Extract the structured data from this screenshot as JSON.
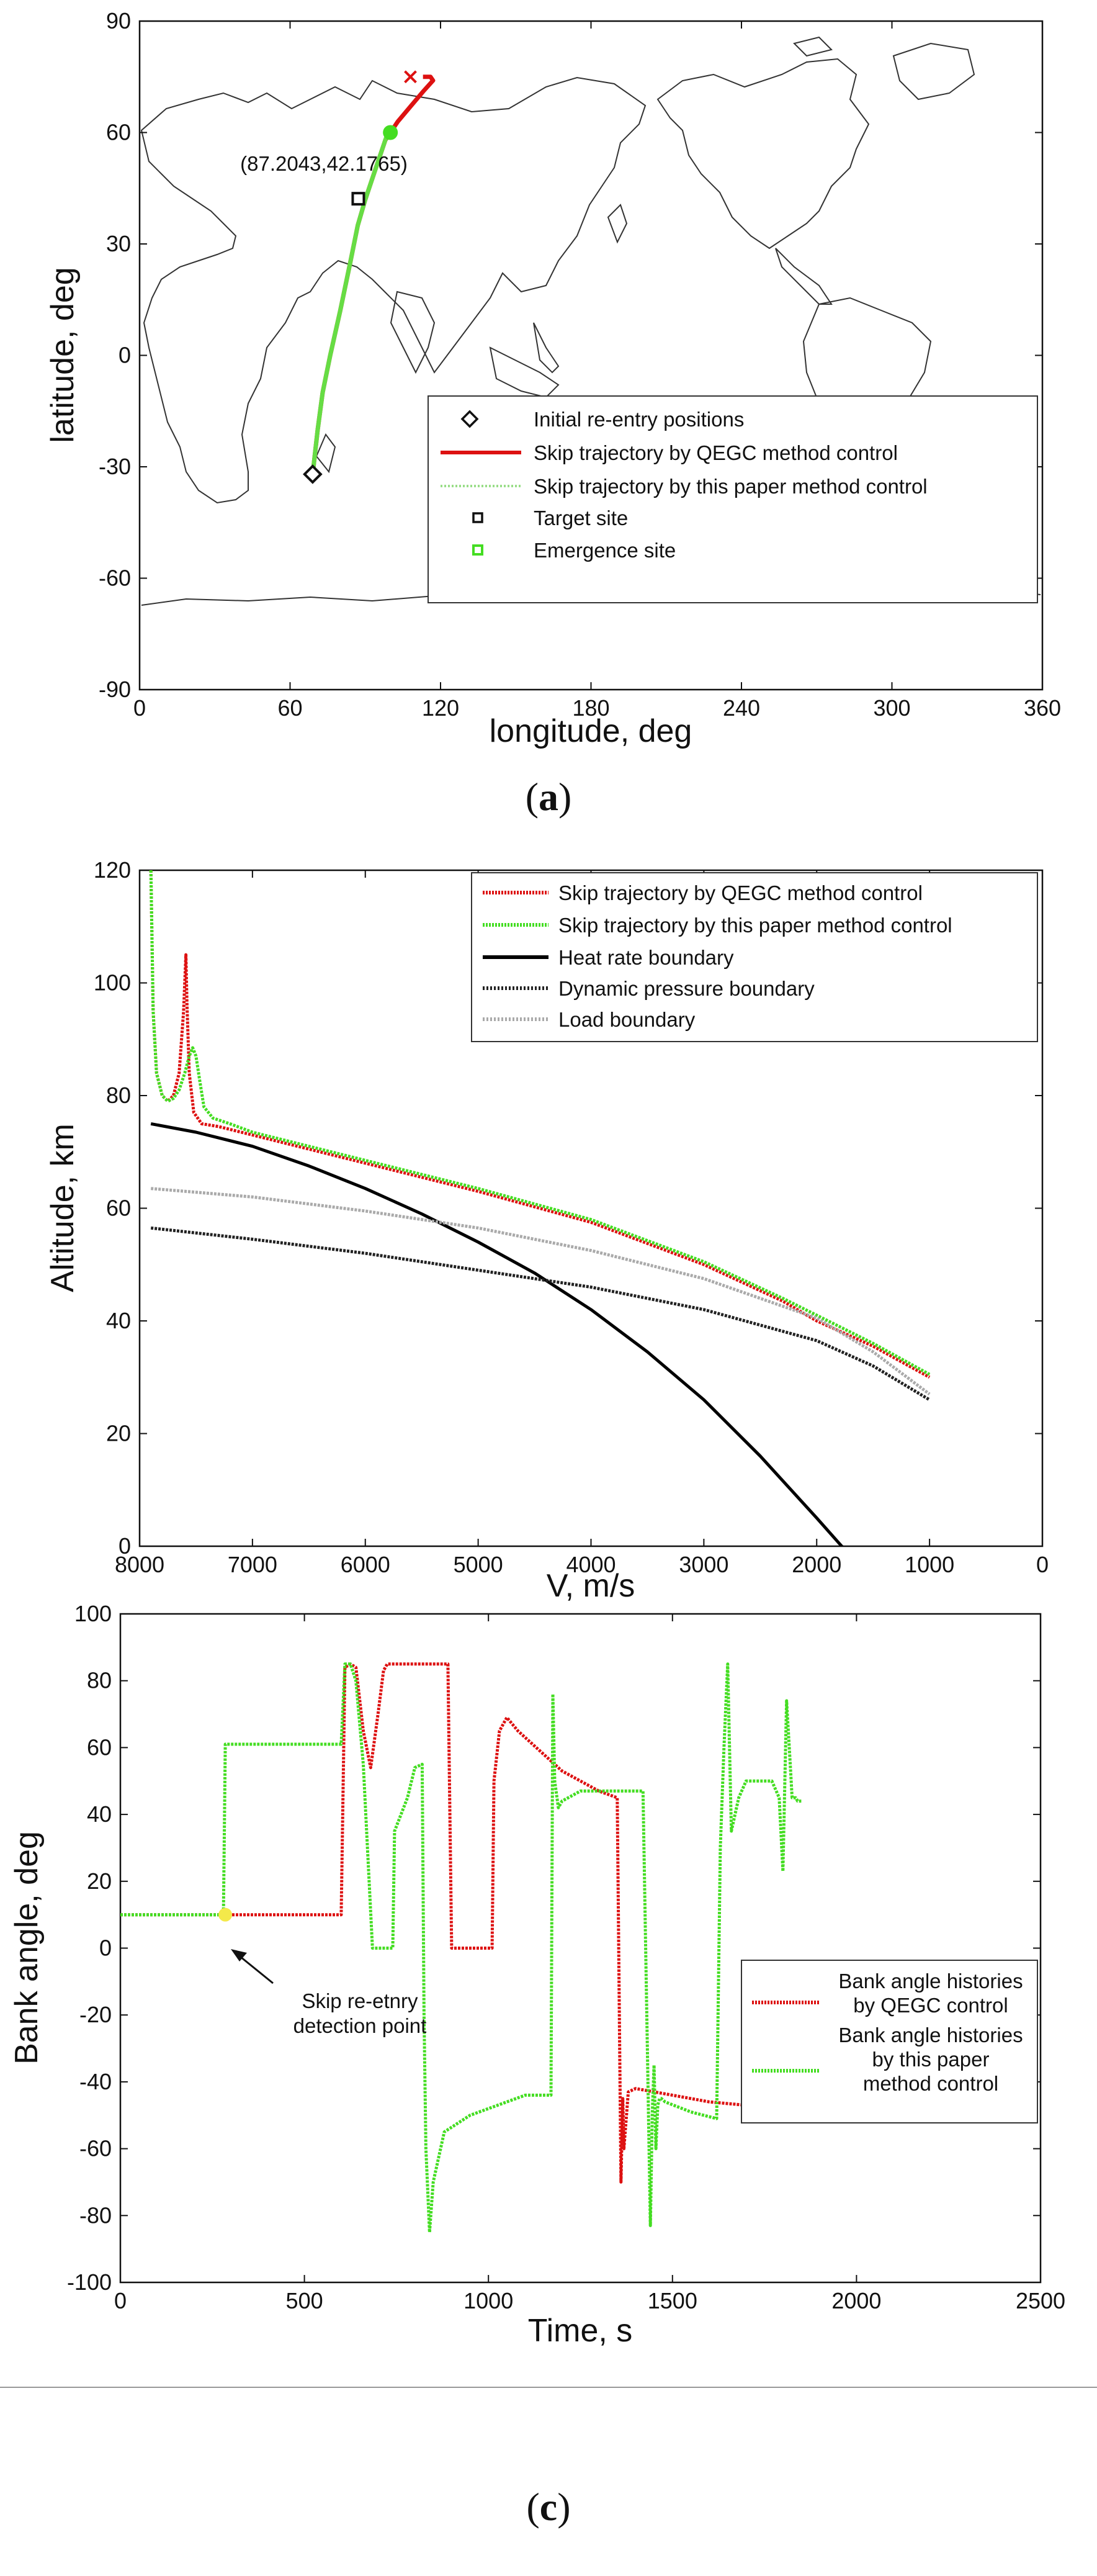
{
  "chart_data": [
    {
      "id": "a",
      "type": "line",
      "subfigure_label": "a",
      "xlabel": "longitude, deg",
      "ylabel": "latitude, deg",
      "xlim": [
        0,
        360
      ],
      "ylim": [
        -90,
        90
      ],
      "xticks": [
        0,
        60,
        120,
        180,
        240,
        300,
        360
      ],
      "yticks": [
        -90,
        -60,
        -30,
        0,
        30,
        60,
        90
      ],
      "annotation": "(87.2043,42.1765)",
      "legend": [
        "Initial re-entry positions",
        "Skip trajectory by QEGC method control",
        "Skip trajectory by this paper method control",
        "Target site",
        "Emergence site"
      ],
      "series": [
        {
          "name": "Skip trajectory by QEGC method control",
          "color": "#dd1111",
          "x": [
            69,
            71,
            73,
            76,
            80,
            84,
            87,
            90,
            94,
            98,
            103,
            108,
            113,
            117,
            116,
            113
          ],
          "y": [
            -32,
            -20,
            -10,
            0,
            12,
            25,
            35,
            42,
            50,
            58,
            63,
            67,
            71,
            74,
            75,
            75
          ]
        },
        {
          "name": "Skip trajectory by this paper method control",
          "color": "#66dd44",
          "x": [
            69,
            71,
            73,
            76,
            80,
            84,
            87,
            90,
            94,
            99
          ],
          "y": [
            -32,
            -20,
            -10,
            0,
            12,
            25,
            35,
            42,
            50,
            60
          ]
        }
      ],
      "points": {
        "initial": {
          "x": 69,
          "y": -32
        },
        "target": {
          "x": 87.2043,
          "y": 42.1765
        },
        "emergence": {
          "x": 100,
          "y": 60
        }
      },
      "colors": {
        "red": "#dd1111",
        "green": "#66dd44",
        "map": "#333333"
      }
    },
    {
      "id": "b",
      "type": "line",
      "subfigure_label": "b",
      "xlabel": "V, m/s",
      "ylabel": "Altitude, km",
      "xlim": [
        8000,
        0
      ],
      "ylim": [
        0,
        120
      ],
      "xticks": [
        8000,
        7000,
        6000,
        5000,
        4000,
        3000,
        2000,
        1000,
        0
      ],
      "yticks": [
        0,
        20,
        40,
        60,
        80,
        100,
        120
      ],
      "legend": [
        "Skip trajectory by QEGC method control",
        "Skip trajectory by this paper method control",
        "Heat rate boundary",
        "Dynamic pressure boundary",
        "Load boundary"
      ],
      "series": [
        {
          "name": "Skip trajectory by QEGC method control",
          "color": "#dd1111",
          "style": "dotted",
          "x": [
            7900,
            7880,
            7850,
            7800,
            7750,
            7700,
            7650,
            7610,
            7590,
            7580,
            7560,
            7520,
            7450,
            7300,
            7000,
            6500,
            6000,
            5000,
            4000,
            3000,
            2300,
            2000,
            1500,
            1000
          ],
          "y": [
            120,
            95,
            84,
            80,
            79,
            80,
            84,
            95,
            105,
            96,
            84,
            77,
            75,
            74.5,
            73,
            70.5,
            68,
            63,
            57.5,
            50,
            43.5,
            40,
            35.5,
            30
          ]
        },
        {
          "name": "Skip trajectory by this paper method control",
          "color": "#44dd22",
          "style": "dotted",
          "x": [
            7900,
            7880,
            7850,
            7800,
            7750,
            7700,
            7650,
            7600,
            7560,
            7530,
            7500,
            7470,
            7430,
            7350,
            7200,
            7000,
            6500,
            6000,
            5000,
            4000,
            3000,
            2300,
            2000,
            1500,
            1000
          ],
          "y": [
            120,
            95,
            84,
            80,
            79,
            79.5,
            81,
            84,
            87,
            88.5,
            87,
            83,
            78,
            76,
            75,
            73.5,
            71,
            68.5,
            63.5,
            58,
            50.5,
            44,
            41,
            36,
            30.5
          ]
        },
        {
          "name": "Heat rate boundary",
          "color": "#000000",
          "style": "solid",
          "x": [
            7900,
            7500,
            7000,
            6500,
            6000,
            5500,
            5000,
            4500,
            4000,
            3500,
            3000,
            2500,
            2000,
            1800,
            1600,
            1560
          ],
          "y": [
            75,
            73.5,
            71,
            67.5,
            63.5,
            59,
            54,
            48.5,
            42,
            34.5,
            26,
            16,
            5,
            0.5,
            -4,
            -5
          ]
        },
        {
          "name": "Dynamic pressure boundary",
          "color": "#222222",
          "style": "dotted",
          "x": [
            7900,
            7000,
            6000,
            5000,
            4000,
            3000,
            2000,
            1500,
            1000
          ],
          "y": [
            56.5,
            54.5,
            52,
            49,
            46,
            42,
            36.5,
            32,
            26
          ]
        },
        {
          "name": "Load boundary",
          "color": "#aaaaaa",
          "style": "dotted",
          "x": [
            7900,
            7000,
            6000,
            5000,
            4000,
            3000,
            2000,
            1500,
            1000
          ],
          "y": [
            63.5,
            62,
            59.5,
            56.5,
            52.5,
            47.5,
            40.5,
            34.5,
            27
          ]
        }
      ]
    },
    {
      "id": "c",
      "type": "line",
      "subfigure_label": "c",
      "xlabel": "Time, s",
      "ylabel": "Bank angle, deg",
      "xlim": [
        0,
        2500
      ],
      "ylim": [
        -100,
        100
      ],
      "xticks": [
        0,
        500,
        1000,
        1500,
        2000,
        2500
      ],
      "yticks": [
        -100,
        -80,
        -60,
        -40,
        -20,
        0,
        20,
        40,
        60,
        80,
        100
      ],
      "annotation_lines": [
        "Skip re-etnry",
        "detection point"
      ],
      "annotation_point": {
        "x": 285,
        "y": 10
      },
      "legend": [
        "Bank angle histories\nby QEGC control",
        "Bank angle histories\nby this paper\nmethod control"
      ],
      "series": [
        {
          "name": "Bank angle histories by QEGC control",
          "color": "#dd1111",
          "x": [
            0,
            600,
            610,
            625,
            640,
            660,
            680,
            700,
            715,
            725,
            740,
            890,
            900,
            1010,
            1015,
            1030,
            1050,
            1080,
            1150,
            1200,
            1300,
            1350,
            1360,
            1365,
            1368,
            1380,
            1400,
            1500,
            1600,
            1700,
            1800,
            1900,
            1960,
            2000,
            2050,
            2090
          ],
          "y": [
            10,
            10,
            84,
            85,
            84,
            65,
            54,
            70,
            83,
            85,
            85,
            85,
            0,
            0,
            50,
            65,
            69,
            65,
            58,
            53,
            47,
            45,
            -70,
            -45,
            -60,
            -43,
            -42,
            -44,
            -46,
            -47,
            -48,
            -51,
            -52,
            -51,
            -49,
            -47
          ]
        },
        {
          "name": "Bank angle histories by this paper method control",
          "color": "#44dd22",
          "x": [
            0,
            280,
            285,
            600,
            610,
            625,
            640,
            660,
            685,
            700,
            705,
            740,
            745,
            780,
            800,
            820,
            825,
            830,
            840,
            850,
            880,
            950,
            1100,
            1170,
            1175,
            1180,
            1190,
            1200,
            1250,
            1300,
            1350,
            1420,
            1440,
            1445,
            1450,
            1455,
            1460,
            1465,
            1470,
            1480,
            1550,
            1620,
            1630,
            1640,
            1650,
            1660,
            1680,
            1700,
            1770,
            1790,
            1800,
            1810,
            1820,
            1825,
            1835,
            1840,
            1850
          ],
          "y": [
            10,
            10,
            61,
            61,
            85,
            85,
            80,
            55,
            0,
            0,
            0,
            0,
            35,
            45,
            54,
            55,
            -20,
            -60,
            -85,
            -70,
            -55,
            -50,
            -44,
            -44,
            76,
            50,
            42,
            44,
            47,
            47,
            47,
            47,
            -83,
            -50,
            -35,
            -60,
            -47,
            -45,
            -45,
            -46,
            -49,
            -51,
            30,
            60,
            85,
            35,
            45,
            50,
            50,
            45,
            23,
            74,
            55,
            45,
            45,
            44,
            44
          ]
        }
      ]
    }
  ]
}
